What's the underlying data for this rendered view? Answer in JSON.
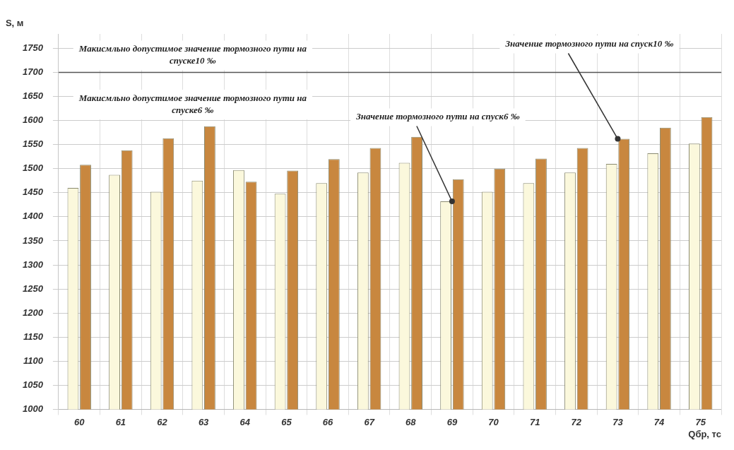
{
  "chart_data": {
    "type": "bar",
    "ylabel": "S, м",
    "xlabel": "Qбр, тс",
    "categories": [
      "60",
      "61",
      "62",
      "63",
      "64",
      "65",
      "66",
      "67",
      "68",
      "69",
      "70",
      "71",
      "72",
      "73",
      "74",
      "75"
    ],
    "series": [
      {
        "color": "#fbf8dc",
        "values": [
          1460,
          1487,
          1452,
          1475,
          1497,
          1448,
          1470,
          1492,
          1512,
          1432,
          1452,
          1470,
          1492,
          1510,
          1532,
          1552
        ]
      },
      {
        "color": "#c8873f",
        "values": [
          1508,
          1538,
          1563,
          1588,
          1473,
          1496,
          1520,
          1543,
          1566,
          1478,
          1500,
          1521,
          1543,
          1562,
          1585,
          1607
        ]
      }
    ],
    "ylim": [
      1000,
      1780
    ],
    "yticks": [
      1000,
      1050,
      1100,
      1150,
      1200,
      1250,
      1300,
      1350,
      1400,
      1450,
      1500,
      1550,
      1600,
      1650,
      1700,
      1750
    ],
    "grid": true,
    "legend": false,
    "ref_lines": [
      {
        "axis": "y",
        "value": 1700,
        "label": "Макисмльно допустимое значение тормозного пути на спуске10 ‰",
        "color": "#555555"
      }
    ],
    "annotations": [
      "Макисмльно допустимое значение тормозного пути на спуске6 ‰",
      {
        "text": "Значение тормозного пути на спуск6 ‰",
        "x": "69",
        "y": 1432
      },
      {
        "text": "Значение тормозного пути на спуск10 ‰",
        "x": "73",
        "y": 1562
      }
    ]
  }
}
